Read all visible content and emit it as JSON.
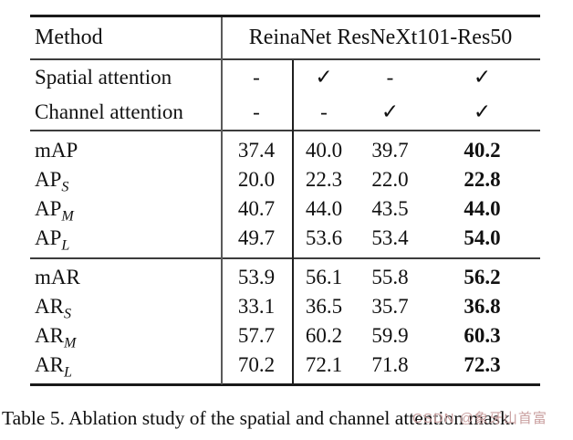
{
  "table": {
    "header": {
      "method": "Method",
      "group": "ReinaNet ResNeXt101-Res50"
    },
    "attention_rows": [
      {
        "label": "Spatial attention",
        "values": [
          "-",
          "✓",
          "-",
          "✓"
        ]
      },
      {
        "label": "Channel attention",
        "values": [
          "-",
          "-",
          "✓",
          "✓"
        ]
      }
    ],
    "ap_rows": [
      {
        "label": "mAP",
        "sub": "",
        "values": [
          "37.4",
          "40.0",
          "39.7",
          "40.2"
        ]
      },
      {
        "label": "AP",
        "sub": "S",
        "values": [
          "20.0",
          "22.3",
          "22.0",
          "22.8"
        ]
      },
      {
        "label": "AP",
        "sub": "M",
        "values": [
          "40.7",
          "44.0",
          "43.5",
          "44.0"
        ]
      },
      {
        "label": "AP",
        "sub": "L",
        "values": [
          "49.7",
          "53.6",
          "53.4",
          "54.0"
        ]
      }
    ],
    "ar_rows": [
      {
        "label": "mAR",
        "sub": "",
        "values": [
          "53.9",
          "56.1",
          "55.8",
          "56.2"
        ]
      },
      {
        "label": "AR",
        "sub": "S",
        "values": [
          "33.1",
          "36.5",
          "35.7",
          "36.8"
        ]
      },
      {
        "label": "AR",
        "sub": "M",
        "values": [
          "57.7",
          "60.2",
          "59.9",
          "60.3"
        ]
      },
      {
        "label": "AR",
        "sub": "L",
        "values": [
          "70.2",
          "72.1",
          "71.8",
          "72.3"
        ]
      }
    ]
  },
  "caption": "Table 5. Ablation study of the spatial and channel attention mask.",
  "watermark": "CSDN @象牙山首富",
  "colors": {
    "watermark": "#c99f9f",
    "rule_heavy": "#1a1a1a",
    "rule_mid": "#3c3c3c"
  }
}
